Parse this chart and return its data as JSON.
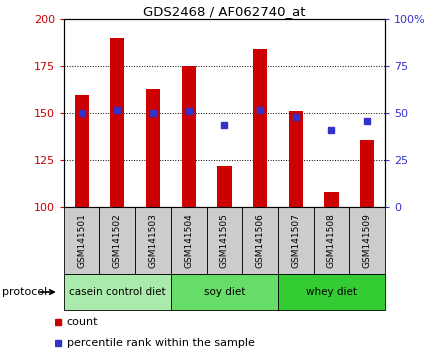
{
  "title": "GDS2468 / AF062740_at",
  "samples": [
    "GSM141501",
    "GSM141502",
    "GSM141503",
    "GSM141504",
    "GSM141505",
    "GSM141506",
    "GSM141507",
    "GSM141508",
    "GSM141509"
  ],
  "bar_heights": [
    160,
    190,
    163,
    175,
    122,
    184,
    151,
    108,
    136
  ],
  "bar_base": 100,
  "bar_color": "#cc0000",
  "blue_y_left": [
    150,
    152,
    150,
    151,
    144,
    152,
    148,
    141,
    146
  ],
  "blue_color": "#3333cc",
  "ylim_left": [
    100,
    200
  ],
  "ylim_right": [
    0,
    100
  ],
  "yticks_left": [
    100,
    125,
    150,
    175,
    200
  ],
  "yticks_right": [
    0,
    25,
    50,
    75,
    100
  ],
  "ytick_labels_left": [
    "100",
    "125",
    "150",
    "175",
    "200"
  ],
  "ytick_labels_right": [
    "0",
    "25",
    "50",
    "75",
    "100%"
  ],
  "left_tick_color": "#cc0000",
  "right_tick_color": "#3333cc",
  "group_labels": [
    "casein control diet",
    "soy diet",
    "whey diet"
  ],
  "group_starts": [
    0,
    3,
    6
  ],
  "group_ends": [
    3,
    6,
    9
  ],
  "group_colors": [
    "#aaeaaa",
    "#66dd66",
    "#33cc33"
  ],
  "protocol_label": "protocol",
  "legend_count_color": "#cc0000",
  "legend_pct_color": "#3333cc",
  "tick_label_area_color": "#cccccc",
  "bar_width": 0.4
}
